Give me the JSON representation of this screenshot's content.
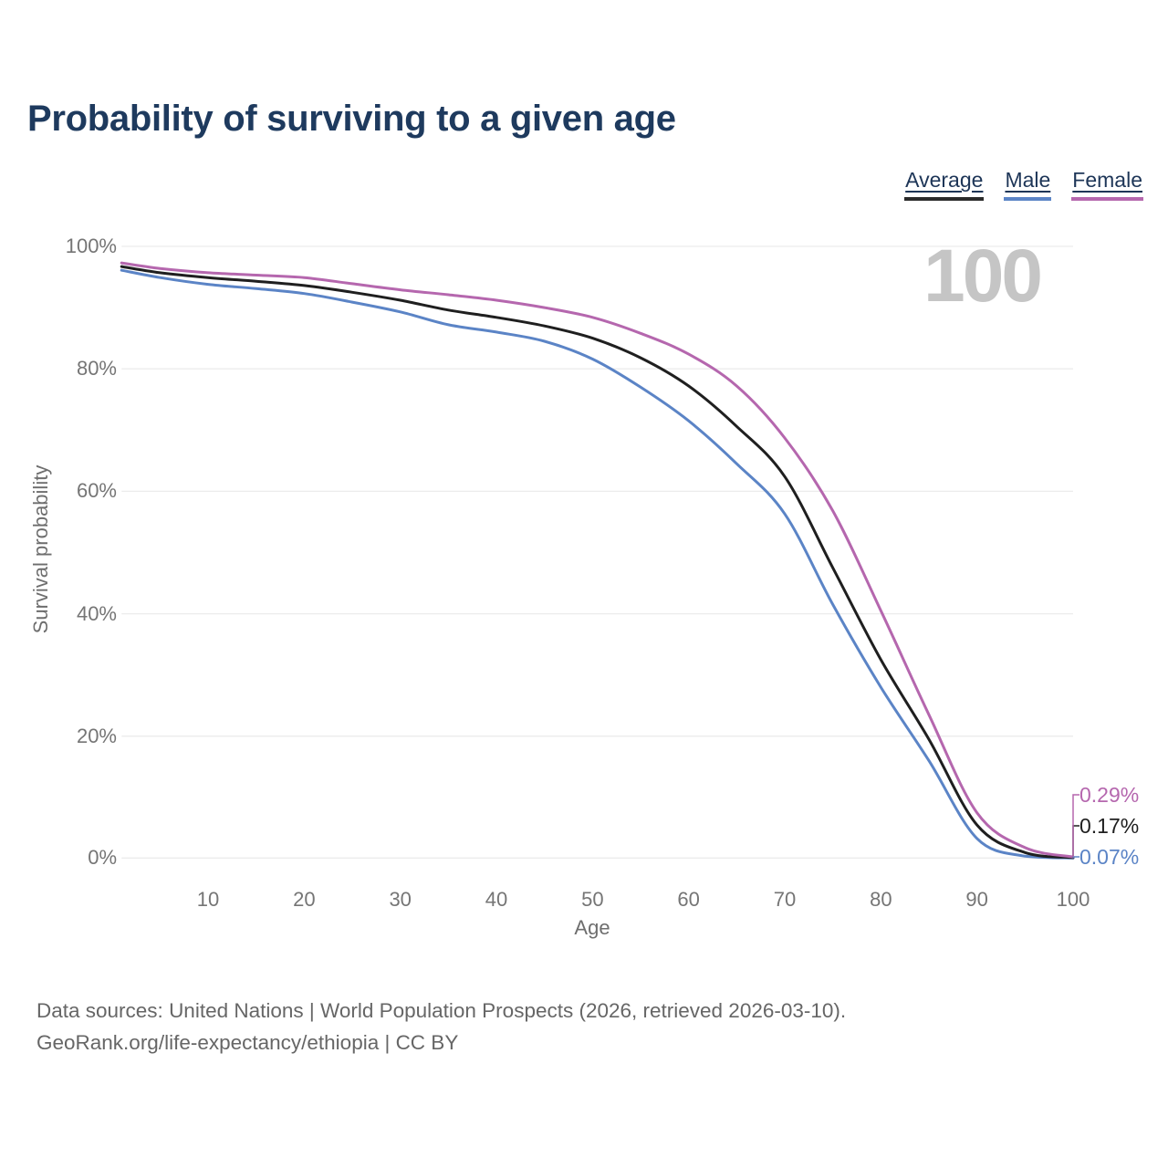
{
  "header": {
    "title": "Probability of surviving to a given age"
  },
  "legend": {
    "items": [
      {
        "label": "Average",
        "color": "#2b2b2b"
      },
      {
        "label": "Male",
        "color": "#5b84c6"
      },
      {
        "label": "Female",
        "color": "#b567ae"
      }
    ]
  },
  "chart_data": {
    "type": "line",
    "title": "Probability of surviving to a given age",
    "xlabel": "Age",
    "ylabel": "Survival probability",
    "watermark": "100",
    "x_ticks": [
      10,
      20,
      30,
      40,
      50,
      60,
      70,
      80,
      90,
      100
    ],
    "y_ticks": [
      0,
      20,
      40,
      60,
      80,
      100
    ],
    "y_tick_suffix": "%",
    "xlim": [
      1,
      100
    ],
    "ylim": [
      0,
      100
    ],
    "grid": "horizontal",
    "legend_position": "top-right",
    "ages": [
      1,
      5,
      10,
      15,
      20,
      25,
      30,
      35,
      40,
      45,
      50,
      55,
      60,
      65,
      70,
      75,
      80,
      85,
      90,
      95,
      100
    ],
    "series": [
      {
        "name": "Average",
        "color": "#1f1f1f",
        "end_label": "0.17%",
        "values": [
          96.7,
          95.7,
          94.9,
          94.3,
          93.6,
          92.5,
          91.2,
          89.6,
          88.4,
          87.0,
          85.0,
          81.8,
          77.2,
          70.6,
          62.4,
          47.5,
          32.5,
          19.5,
          5.5,
          1.0,
          0.17
        ]
      },
      {
        "name": "Male",
        "color": "#5b84c6",
        "end_label": "0.07%",
        "values": [
          96.1,
          94.9,
          93.8,
          93.1,
          92.3,
          90.9,
          89.3,
          87.2,
          86.0,
          84.5,
          81.6,
          77.0,
          71.5,
          64.5,
          56.3,
          41.5,
          28.0,
          16.0,
          3.3,
          0.4,
          0.07
        ]
      },
      {
        "name": "Female",
        "color": "#b567ae",
        "end_label": "0.29%",
        "values": [
          97.3,
          96.4,
          95.7,
          95.3,
          94.9,
          93.9,
          92.9,
          92.1,
          91.2,
          90.0,
          88.4,
          85.8,
          82.4,
          77.2,
          68.7,
          56.8,
          40.5,
          23.5,
          7.5,
          1.8,
          0.29
        ]
      }
    ]
  },
  "footer": {
    "line1": "Data sources: United Nations | World Population Prospects (2026, retrieved 2026-03-10).",
    "line2": "GeoRank.org/life-expectancy/ethiopia | CC BY"
  }
}
